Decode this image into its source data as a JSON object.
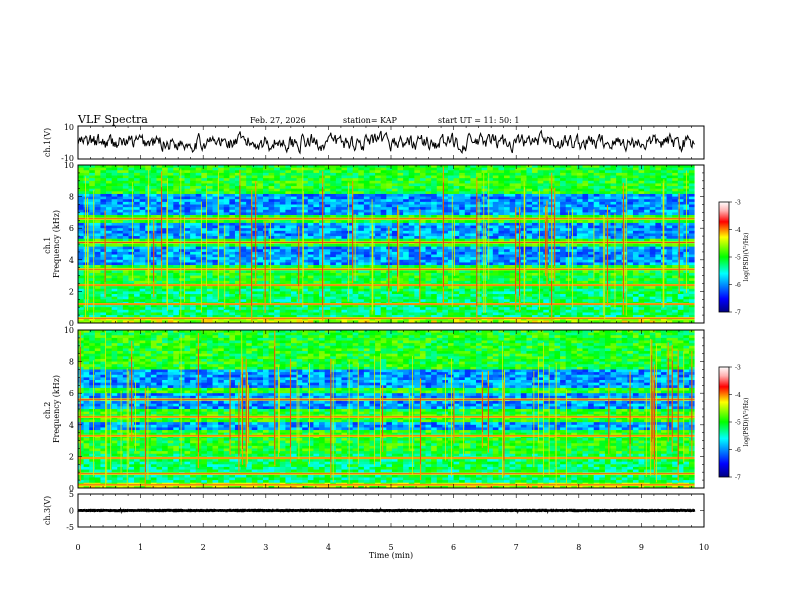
{
  "chart_data": [
    {
      "type": "line",
      "panel": "ch1-waveform",
      "title": "VLF Spectra",
      "header": {
        "date": "Feb. 27, 2026",
        "station": "station= KAP",
        "start": "start  UT  =   11: 50: 1"
      },
      "ylabel": "ch.1(V)",
      "ylim": [
        -10,
        10
      ],
      "ytick_labels": [
        "10",
        "-10"
      ],
      "xlim": [
        0,
        10
      ],
      "series": [
        {
          "name": "ch.1 waveform",
          "amplitude": 6
        }
      ]
    },
    {
      "type": "heatmap",
      "panel": "ch1-spectrogram",
      "ylabel": "ch.1\nFrequency  (kHz)",
      "ylim": [
        0,
        10
      ],
      "yticks": [
        0,
        2,
        4,
        6,
        8,
        10
      ],
      "xlim": [
        0,
        10
      ],
      "data_end_min": 9.85,
      "intense_bands_khz": [
        0.3,
        1.2,
        2.4,
        3.4,
        5.1,
        6.6
      ],
      "quiet_bands_khz": [
        [
          3.6,
          4.9
        ],
        [
          5.4,
          6.3
        ],
        [
          6.9,
          8.2
        ]
      ],
      "colorbar": {
        "label": "log(PSD)(V²/Hz)",
        "range": [
          -7,
          -3
        ],
        "ticks": [
          "-3",
          "-4",
          "-5",
          "-6",
          "-7"
        ]
      }
    },
    {
      "type": "heatmap",
      "panel": "ch2-spectrogram",
      "ylabel": "ch.2\nFrequency  (kHz)",
      "ylim": [
        0,
        10
      ],
      "yticks": [
        0,
        2,
        4,
        6,
        8,
        10
      ],
      "xlim": [
        0,
        10
      ],
      "data_end_min": 9.85,
      "intense_bands_khz": [
        0.2,
        0.9,
        1.9,
        3.3,
        4.5,
        5.6
      ],
      "quiet_bands_khz": [
        [
          3.6,
          4.2
        ],
        [
          5.0,
          6.0
        ],
        [
          6.3,
          7.5
        ]
      ],
      "colorbar": {
        "label": "log(PSD)(V²/Hz)",
        "range": [
          -7,
          -3
        ],
        "ticks": [
          "-3",
          "-4",
          "-5",
          "-6",
          "-7"
        ]
      }
    },
    {
      "type": "line",
      "panel": "ch3-waveform",
      "ylabel": "ch.3(V)",
      "ylim": [
        -5,
        5
      ],
      "yticks": [
        -5,
        0,
        5
      ],
      "ytick_labels": [
        "-5",
        "0",
        "5"
      ],
      "xlim": [
        0,
        10
      ],
      "xticks": [
        0,
        1,
        2,
        3,
        4,
        5,
        6,
        7,
        8,
        9,
        10
      ],
      "xlabel": "Time  (min)",
      "series": [
        {
          "name": "ch.3 waveform",
          "center": 0,
          "amplitude": 0.5
        }
      ]
    }
  ]
}
